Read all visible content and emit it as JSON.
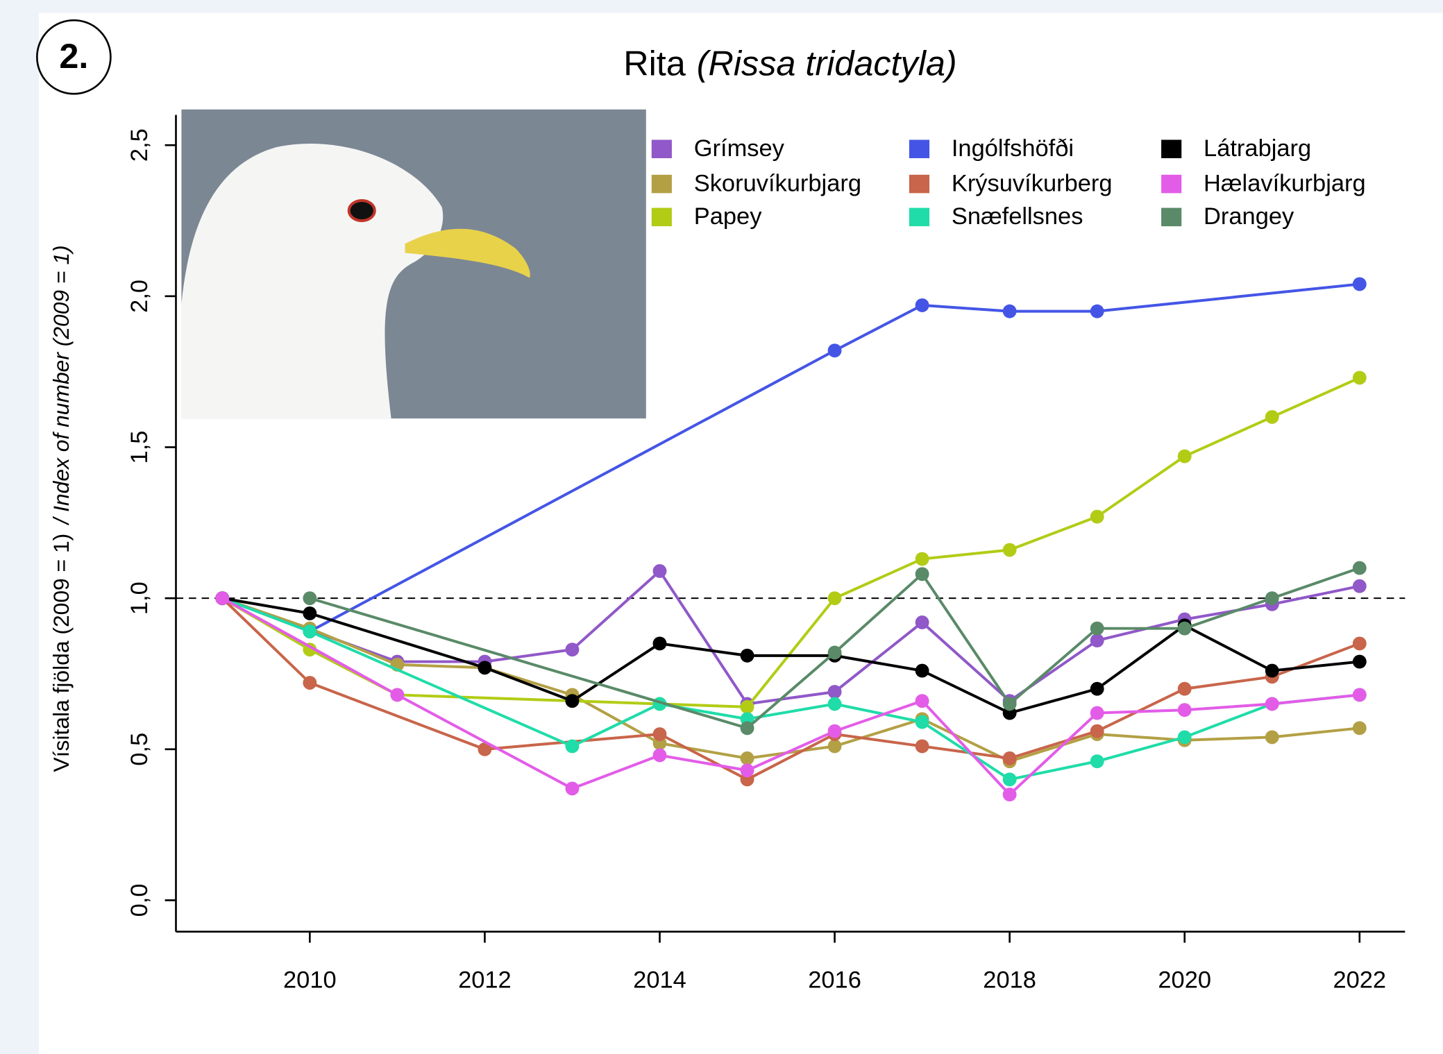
{
  "badge": "2.",
  "chart_data": {
    "type": "line",
    "title": "Rita",
    "title_latin": "(Rissa tridactyla)",
    "y_label": "Vísitala fjölda (2009 = 1)",
    "y_label_italic": "/ Index of number (2009 = 1)",
    "xlim": [
      2008.47,
      2022.52
    ],
    "xticks": [
      2010,
      2012,
      2014,
      2016,
      2018,
      2020,
      2022
    ],
    "ylim": [
      -0.104,
      2.6
    ],
    "yticks": [
      {
        "value": 0,
        "label": "0,0"
      },
      {
        "value": 0.5,
        "label": "0,5"
      },
      {
        "value": 1,
        "label": "1,0"
      },
      {
        "value": 1.5,
        "label": "1,5"
      },
      {
        "value": 2,
        "label": "2,0"
      },
      {
        "value": 2.5,
        "label": "2,5"
      }
    ],
    "reference_line": 1,
    "series": [
      {
        "name": "Grímsey",
        "color": "#9058c8",
        "x": [
          2009,
          2011,
          2012,
          2013,
          2014,
          2015,
          2016,
          2017,
          2018,
          2019,
          2020,
          2021,
          2022
        ],
        "values": [
          1.0,
          0.79,
          0.79,
          0.83,
          1.09,
          0.65,
          0.69,
          0.92,
          0.66,
          0.86,
          0.93,
          0.98,
          1.04
        ]
      },
      {
        "name": "Skoruvíkurbjarg",
        "color": "#b3a045",
        "x": [
          2009,
          2010,
          2011,
          2012,
          2013,
          2014,
          2015,
          2016,
          2017,
          2018,
          2019,
          2020,
          2021,
          2022
        ],
        "values": [
          1.0,
          0.9,
          0.78,
          0.77,
          0.68,
          0.52,
          0.47,
          0.51,
          0.6,
          0.46,
          0.55,
          0.53,
          0.54,
          0.57
        ]
      },
      {
        "name": "Papey",
        "color": "#b2cc16",
        "x": [
          2009,
          2010,
          2011,
          2013,
          2014,
          2015,
          2016,
          2017,
          2018,
          2019,
          2020,
          2021,
          2022
        ],
        "values": [
          1.0,
          0.83,
          0.68,
          0.66,
          0.65,
          0.64,
          1.0,
          1.13,
          1.16,
          1.27,
          1.47,
          1.6,
          1.73
        ]
      },
      {
        "name": "Ingólfshöfði",
        "color": "#4455e6",
        "x": [
          2009,
          2010,
          2016,
          2017,
          2018,
          2019,
          2022
        ],
        "values": [
          1.0,
          0.89,
          1.82,
          1.97,
          1.95,
          1.95,
          2.04
        ]
      },
      {
        "name": "Krýsuvíkurberg",
        "color": "#c8654a",
        "x": [
          2009,
          2010,
          2012,
          2014,
          2015,
          2016,
          2017,
          2018,
          2019,
          2020,
          2021,
          2022
        ],
        "values": [
          1.0,
          0.72,
          0.5,
          0.55,
          0.4,
          0.55,
          0.51,
          0.47,
          0.56,
          0.7,
          0.74,
          0.85
        ]
      },
      {
        "name": "Snæfellsnes",
        "color": "#1fdca8",
        "x": [
          2009,
          2010,
          2013,
          2014,
          2015,
          2016,
          2017,
          2018,
          2019,
          2020,
          2021,
          2022
        ],
        "values": [
          1.0,
          0.89,
          0.51,
          0.65,
          0.6,
          0.65,
          0.59,
          0.4,
          0.46,
          0.54,
          0.65,
          0.68
        ]
      },
      {
        "name": "Látrabjarg",
        "color": "#000000",
        "x": [
          2009,
          2010,
          2012,
          2013,
          2014,
          2015,
          2016,
          2017,
          2018,
          2019,
          2020,
          2021,
          2022
        ],
        "values": [
          1.0,
          0.95,
          0.77,
          0.66,
          0.85,
          0.81,
          0.81,
          0.76,
          0.62,
          0.7,
          0.91,
          0.76,
          0.79
        ]
      },
      {
        "name": "Hælavíkurbjarg",
        "color": "#e35ce8",
        "x": [
          2009,
          2011,
          2013,
          2014,
          2015,
          2016,
          2017,
          2018,
          2019,
          2020,
          2021,
          2022
        ],
        "values": [
          1.0,
          0.68,
          0.37,
          0.48,
          0.43,
          0.56,
          0.66,
          0.35,
          0.62,
          0.63,
          0.65,
          0.68
        ]
      },
      {
        "name": "Drangey",
        "color": "#5a8a68",
        "x": [
          2010,
          2015,
          2016,
          2017,
          2018,
          2019,
          2020,
          2021,
          2022
        ],
        "values": [
          1.0,
          0.57,
          0.82,
          1.08,
          0.65,
          0.9,
          0.9,
          1.0,
          1.1
        ]
      }
    ]
  }
}
